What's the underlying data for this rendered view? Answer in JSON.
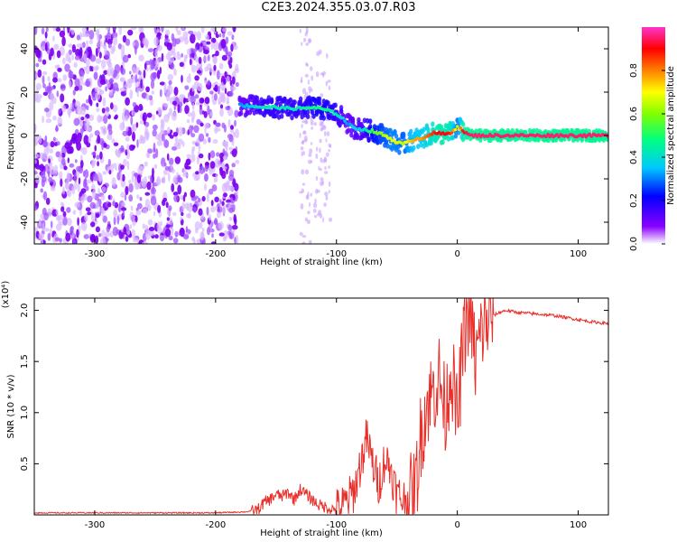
{
  "title": "C2E3.2024.355.03.07.R03",
  "chart_data": [
    {
      "type": "heatmap",
      "xlabel": "Height of straight line (km)",
      "ylabel": "Frequency (Hz)",
      "xlim": [
        -350,
        125
      ],
      "ylim": [
        -50,
        50
      ],
      "xticks": [
        -300,
        -200,
        -100,
        0,
        100
      ],
      "xtick_labels": [
        "-300",
        "-200",
        "-100",
        "0",
        "100"
      ],
      "yticks": [
        -40,
        -20,
        0,
        20,
        40
      ],
      "ytick_labels": [
        "-40",
        "-20",
        "0",
        "20",
        "40"
      ],
      "colorbar": {
        "label": "Normalized spectral amplitude",
        "range": [
          0,
          1
        ],
        "ticks": [
          0.0,
          0.2,
          0.4,
          0.6,
          0.8
        ],
        "tick_labels": [
          "0.0",
          "0.2",
          "0.4",
          "0.6",
          "0.8"
        ],
        "colormap": [
          "#ffffff",
          "#8a00ff",
          "#0000ff",
          "#00c8ff",
          "#00ff80",
          "#80ff00",
          "#ffff00",
          "#ff8000",
          "#ff0000",
          "#ff33cc"
        ]
      },
      "noise_region": {
        "x_from": -350,
        "x_to": -182,
        "y_from": -50,
        "y_to": 50
      },
      "noise_stripes": [
        {
          "x_from": -130,
          "x_to": -120,
          "y_from": -50,
          "y_to": 50
        },
        {
          "x_from": -118,
          "x_to": -105,
          "y_from": -40,
          "y_to": 40
        }
      ],
      "signal_track": {
        "x": [
          -180,
          -170,
          -160,
          -150,
          -140,
          -130,
          -120,
          -110,
          -100,
          -95,
          -90,
          -85,
          -80,
          -75,
          -70,
          -65,
          -60,
          -55,
          -50,
          -45,
          -40,
          -35,
          -30,
          -25,
          -20,
          -15,
          -10,
          -5,
          0,
          5,
          10,
          20,
          40,
          60,
          80,
          100,
          125
        ],
        "y": [
          14,
          13.5,
          13,
          13,
          12.5,
          12.5,
          13,
          12,
          10,
          8,
          5,
          3.5,
          3,
          2.5,
          2,
          1,
          0,
          -1.5,
          -3,
          -4,
          -3,
          -1.5,
          -1.5,
          0,
          1,
          1,
          0.5,
          1.5,
          4,
          2,
          0,
          0,
          0,
          0,
          0,
          0,
          0
        ],
        "amplitude": [
          0.3,
          0.35,
          0.4,
          0.4,
          0.4,
          0.4,
          0.45,
          0.45,
          0.4,
          0.35,
          0.3,
          0.35,
          0.35,
          0.4,
          0.5,
          0.55,
          0.6,
          0.65,
          0.65,
          0.6,
          0.7,
          0.75,
          0.75,
          0.8,
          0.85,
          0.9,
          0.9,
          0.85,
          0.6,
          0.9,
          0.95,
          0.95,
          0.95,
          0.95,
          0.95,
          0.95,
          0.95
        ]
      }
    },
    {
      "type": "line",
      "xlabel": "Height of straight line (km)",
      "ylabel": "SNR (10 * v/v)",
      "scale_note": "(x10⁴)",
      "xlim": [
        -350,
        125
      ],
      "ylim": [
        0,
        2.12
      ],
      "xticks": [
        -300,
        -200,
        -100,
        0,
        100
      ],
      "xtick_labels": [
        "-300",
        "-200",
        "-100",
        "0",
        "100"
      ],
      "yticks": [
        0.5,
        1.0,
        1.5,
        2.0
      ],
      "ytick_labels": [
        "0.5",
        "1.0",
        "1.5",
        "2.0"
      ],
      "series": [
        {
          "color": "#e8302a",
          "x": [
            -350,
            -300,
            -250,
            -200,
            -175,
            -165,
            -160,
            -155,
            -150,
            -145,
            -140,
            -135,
            -130,
            -125,
            -120,
            -115,
            -110,
            -105,
            -100,
            -95,
            -90,
            -85,
            -80,
            -75,
            -70,
            -65,
            -60,
            -55,
            -50,
            -45,
            -40,
            -35,
            -30,
            -25,
            -20,
            -15,
            -10,
            -5,
            0,
            5,
            10,
            15,
            20,
            25,
            30,
            35,
            40,
            50,
            60,
            70,
            80,
            90,
            100,
            110,
            125
          ],
          "y": [
            0.02,
            0.02,
            0.02,
            0.02,
            0.03,
            0.05,
            0.12,
            0.15,
            0.2,
            0.18,
            0.22,
            0.15,
            0.25,
            0.2,
            0.15,
            0.1,
            0.08,
            0.06,
            0.05,
            0.08,
            0.15,
            0.25,
            0.5,
            0.75,
            0.5,
            0.3,
            0.55,
            0.45,
            0.2,
            0.15,
            0.15,
            0.2,
            0.8,
            1.1,
            1.2,
            1.35,
            1.0,
            1.45,
            0.9,
            1.7,
            2.05,
            1.5,
            1.8,
            1.9,
            1.95,
            1.98,
            2.0,
            1.98,
            1.97,
            1.96,
            1.95,
            1.93,
            1.91,
            1.89,
            1.87
          ]
        }
      ]
    }
  ]
}
